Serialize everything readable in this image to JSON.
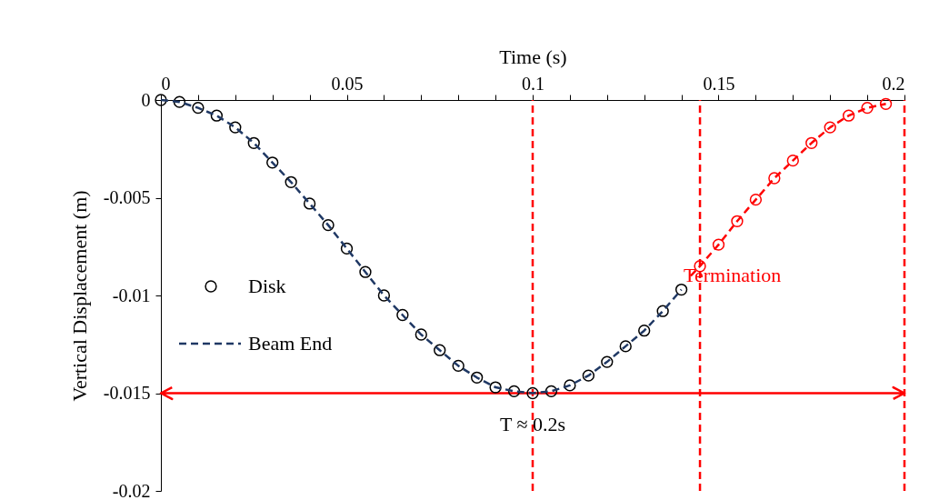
{
  "chart_data": {
    "type": "scatter",
    "xlabel": "Time (s)",
    "ylabel": "Vertical Displacement (m)",
    "xlim": [
      0,
      0.2
    ],
    "ylim": [
      -0.02,
      0
    ],
    "xticks": [
      0,
      {
        "value": 0.01,
        "label": null
      },
      {
        "value": 0.02,
        "label": null
      },
      {
        "value": 0.03,
        "label": null
      },
      {
        "value": 0.04,
        "label": null
      },
      0.05,
      {
        "value": 0.06,
        "label": null
      },
      {
        "value": 0.07,
        "label": null
      },
      {
        "value": 0.08,
        "label": null
      },
      {
        "value": 0.09,
        "label": null
      },
      0.1,
      {
        "value": 0.11,
        "label": null
      },
      {
        "value": 0.12,
        "label": null
      },
      {
        "value": 0.13,
        "label": null
      },
      {
        "value": 0.14,
        "label": null
      },
      0.15,
      {
        "value": 0.16,
        "label": null
      },
      {
        "value": 0.17,
        "label": null
      },
      {
        "value": 0.18,
        "label": null
      },
      {
        "value": 0.19,
        "label": null
      },
      0.2
    ],
    "yticks": [
      0,
      -0.005,
      -0.01,
      -0.015,
      -0.02
    ],
    "grid": false,
    "legend": "left",
    "series": [
      {
        "name": "Disk",
        "marker": "circle",
        "color": "#000000",
        "x": [
          0,
          0.005,
          0.01,
          0.015,
          0.02,
          0.025,
          0.03,
          0.035,
          0.04,
          0.045,
          0.05,
          0.055,
          0.06,
          0.065,
          0.07,
          0.075,
          0.08,
          0.085,
          0.09,
          0.095,
          0.1,
          0.105,
          0.11,
          0.115,
          0.12,
          0.125,
          0.13,
          0.135,
          0.14
        ],
        "values": [
          0,
          -0.0001,
          -0.0004,
          -0.0008,
          -0.0014,
          -0.0022,
          -0.0032,
          -0.0042,
          -0.0053,
          -0.0064,
          -0.0076,
          -0.0088,
          -0.01,
          -0.011,
          -0.012,
          -0.0128,
          -0.0136,
          -0.0142,
          -0.0147,
          -0.0149,
          -0.015,
          -0.0149,
          -0.0146,
          -0.0141,
          -0.0134,
          -0.0126,
          -0.0118,
          -0.0108,
          -0.0097
        ]
      },
      {
        "name": "Beam End",
        "type": "line",
        "marker": "none",
        "line_style": "dashed",
        "color": "#1f3864",
        "x": [
          0,
          0.005,
          0.01,
          0.015,
          0.02,
          0.025,
          0.03,
          0.035,
          0.04,
          0.045,
          0.05,
          0.055,
          0.06,
          0.065,
          0.07,
          0.075,
          0.08,
          0.085,
          0.09,
          0.095,
          0.1,
          0.105,
          0.11,
          0.115,
          0.12,
          0.125,
          0.13,
          0.135,
          0.14
        ],
        "values": [
          0,
          -0.0001,
          -0.0004,
          -0.0008,
          -0.0014,
          -0.0022,
          -0.0032,
          -0.0042,
          -0.0053,
          -0.0064,
          -0.0076,
          -0.0088,
          -0.01,
          -0.011,
          -0.012,
          -0.0128,
          -0.0136,
          -0.0142,
          -0.0147,
          -0.0149,
          -0.015,
          -0.0149,
          -0.0146,
          -0.0141,
          -0.0134,
          -0.0126,
          -0.0118,
          -0.0108,
          -0.0097
        ]
      },
      {
        "type": "line",
        "marker": "circle",
        "line_style": "dashed",
        "color": "#ff0000",
        "x": [
          0.1425,
          0.145,
          0.15,
          0.155,
          0.16,
          0.165,
          0.17,
          0.175,
          0.18,
          0.185,
          0.19,
          0.195
        ],
        "values": [
          -0.009,
          -0.0085,
          -0.0074,
          -0.0062,
          -0.0051,
          -0.004,
          -0.0031,
          -0.0022,
          -0.0014,
          -0.0008,
          -0.0004,
          -0.0002
        ]
      }
    ],
    "ref_lines": [
      {
        "axis": "x",
        "value": 0.1,
        "color": "#ff0000",
        "line_style": "dashed"
      },
      {
        "axis": "x",
        "value": 0.145,
        "color": "#ff0000",
        "line_style": "dashed",
        "label": "Termination"
      },
      {
        "axis": "x",
        "value": 0.2,
        "color": "#ff0000",
        "line_style": "dashed"
      },
      {
        "axis": "y",
        "value": -0.015,
        "color": "#ff0000",
        "line_style": "solid"
      }
    ],
    "annotations": [
      {
        "text": "T ≈ 0.2s",
        "x": 0.1,
        "y": -0.0166
      }
    ]
  }
}
